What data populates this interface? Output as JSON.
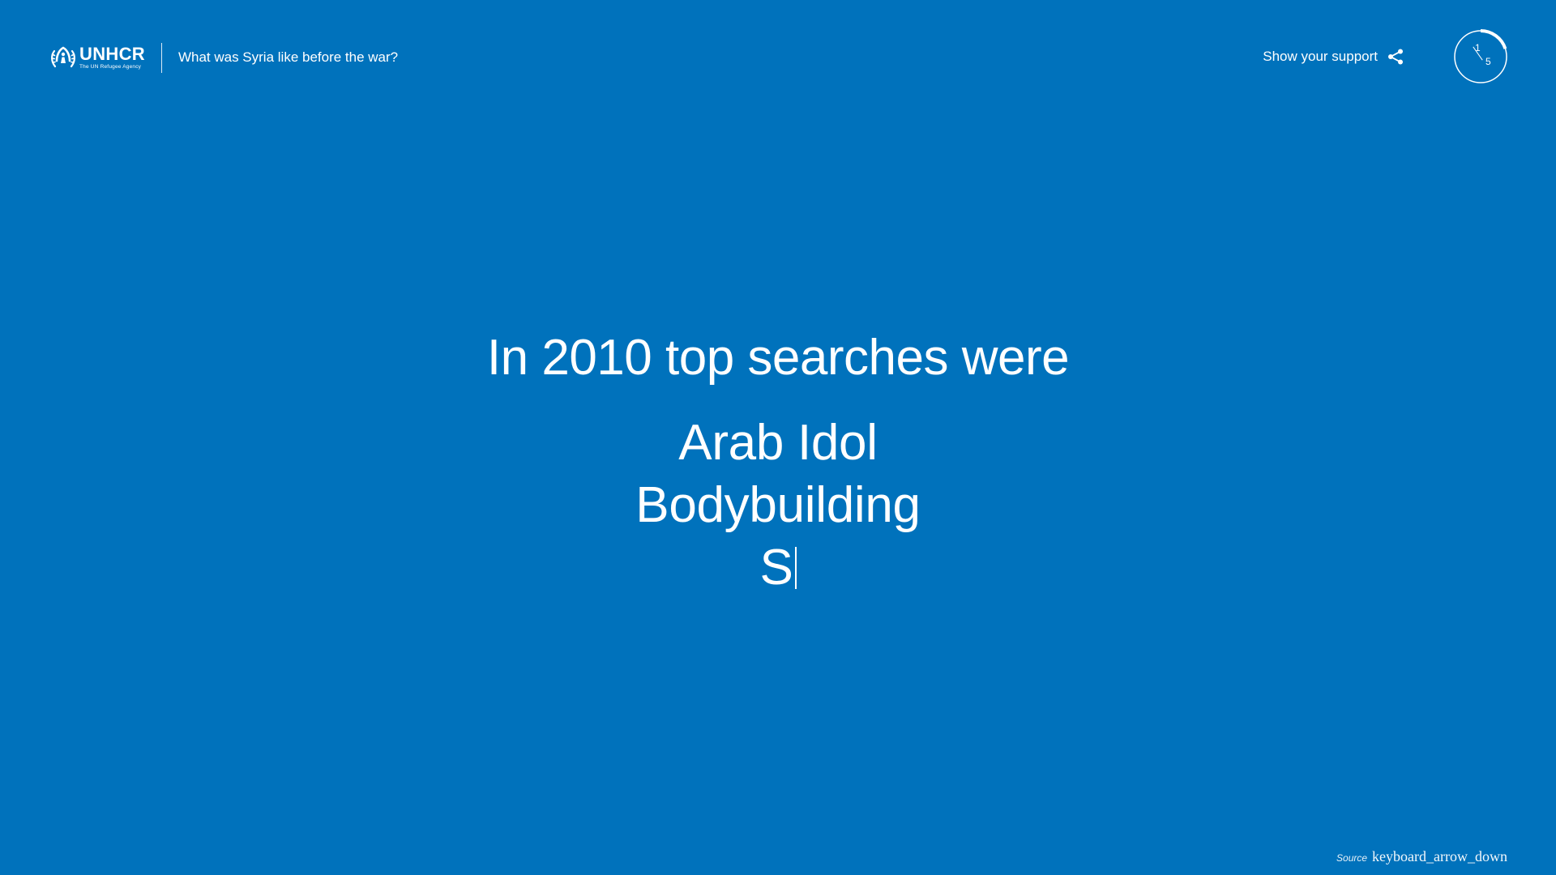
{
  "header": {
    "logo": {
      "wordmark": "UNHCR",
      "tagline": "The UN Refugee Agency",
      "icon": "unhcr-emblem-icon"
    },
    "title": "What was Syria like before the war?",
    "support_label": "Show your support",
    "share_icon": "share-icon",
    "progress": {
      "current": "1",
      "total": "5",
      "fraction": 0.2
    }
  },
  "main": {
    "headline": "In 2010 top searches were",
    "searches": [
      {
        "text": "Arab Idol"
      },
      {
        "text": "Bodybuilding"
      },
      {
        "text": "S"
      }
    ]
  },
  "footer": {
    "source_label": "Source",
    "arrow_text": "keyboard_arrow_down"
  },
  "colors": {
    "background": "#0072BC",
    "foreground": "#FFFFFF"
  }
}
